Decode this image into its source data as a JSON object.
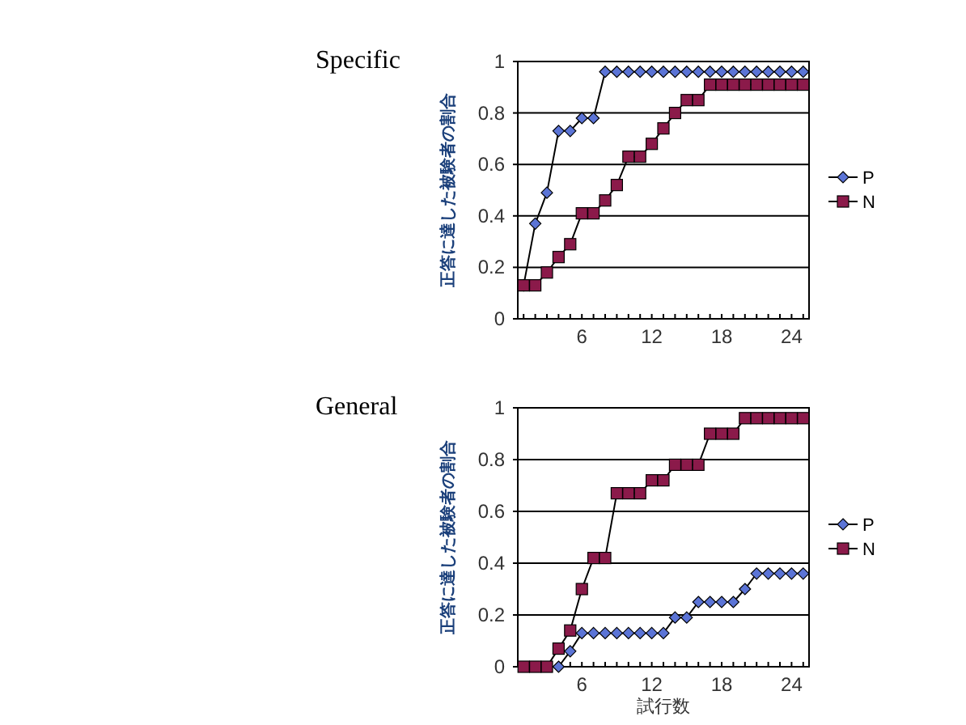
{
  "chart_data": [
    {
      "type": "line",
      "title": "Specific",
      "ylabel": "正答に達した被験者の割合",
      "x": [
        1,
        2,
        3,
        4,
        5,
        6,
        7,
        8,
        9,
        10,
        11,
        12,
        13,
        14,
        15,
        16,
        17,
        18,
        19,
        20,
        21,
        22,
        23,
        24,
        25
      ],
      "xlim": [
        0.5,
        25.5
      ],
      "ylim": [
        0,
        1
      ],
      "yticks": [
        0,
        0.2,
        0.4,
        0.6,
        0.8,
        1
      ],
      "xticks": [
        {
          "value": 1,
          "label": null
        },
        {
          "value": 2,
          "label": null
        },
        {
          "value": 3,
          "label": null
        },
        {
          "value": 4,
          "label": null
        },
        {
          "value": 5,
          "label": null
        },
        6,
        {
          "value": 7,
          "label": null
        },
        {
          "value": 8,
          "label": null
        },
        {
          "value": 9,
          "label": null
        },
        {
          "value": 10,
          "label": null
        },
        {
          "value": 11,
          "label": null
        },
        12,
        {
          "value": 13,
          "label": null
        },
        {
          "value": 14,
          "label": null
        },
        {
          "value": 15,
          "label": null
        },
        {
          "value": 16,
          "label": null
        },
        {
          "value": 17,
          "label": null
        },
        18,
        {
          "value": 19,
          "label": null
        },
        {
          "value": 20,
          "label": null
        },
        {
          "value": 21,
          "label": null
        },
        {
          "value": 22,
          "label": null
        },
        {
          "value": 23,
          "label": null
        },
        24,
        {
          "value": 25,
          "label": null
        }
      ],
      "grid": "y",
      "legend": "right",
      "series": [
        {
          "name": "P",
          "color": "#5b74d6",
          "marker": "diamond",
          "values": [
            0.13,
            0.37,
            0.49,
            0.73,
            0.73,
            0.78,
            0.78,
            0.96,
            0.96,
            0.96,
            0.96,
            0.96,
            0.96,
            0.96,
            0.96,
            0.96,
            0.96,
            0.96,
            0.96,
            0.96,
            0.96,
            0.96,
            0.96,
            0.96,
            0.96
          ]
        },
        {
          "name": "N",
          "color": "#8b1a4a",
          "marker": "square",
          "values": [
            0.13,
            0.13,
            0.18,
            0.24,
            0.29,
            0.41,
            0.41,
            0.46,
            0.52,
            0.63,
            0.63,
            0.68,
            0.74,
            0.8,
            0.85,
            0.85,
            0.91,
            0.91,
            0.91,
            0.91,
            0.91,
            0.91,
            0.91,
            0.91,
            0.91
          ]
        }
      ]
    },
    {
      "type": "line",
      "title": "General",
      "ylabel": "正答に達した被験者の割合",
      "xlabel": "試行数",
      "x": [
        1,
        2,
        3,
        4,
        5,
        6,
        7,
        8,
        9,
        10,
        11,
        12,
        13,
        14,
        15,
        16,
        17,
        18,
        19,
        20,
        21,
        22,
        23,
        24,
        25
      ],
      "xlim": [
        0.5,
        25.5
      ],
      "ylim": [
        0,
        1
      ],
      "yticks": [
        0,
        0.2,
        0.4,
        0.6,
        0.8,
        1
      ],
      "xticks": [
        {
          "value": 1,
          "label": null
        },
        {
          "value": 2,
          "label": null
        },
        {
          "value": 3,
          "label": null
        },
        {
          "value": 4,
          "label": null
        },
        {
          "value": 5,
          "label": null
        },
        6,
        {
          "value": 7,
          "label": null
        },
        {
          "value": 8,
          "label": null
        },
        {
          "value": 9,
          "label": null
        },
        {
          "value": 10,
          "label": null
        },
        {
          "value": 11,
          "label": null
        },
        12,
        {
          "value": 13,
          "label": null
        },
        {
          "value": 14,
          "label": null
        },
        {
          "value": 15,
          "label": null
        },
        {
          "value": 16,
          "label": null
        },
        {
          "value": 17,
          "label": null
        },
        18,
        {
          "value": 19,
          "label": null
        },
        {
          "value": 20,
          "label": null
        },
        {
          "value": 21,
          "label": null
        },
        {
          "value": 22,
          "label": null
        },
        {
          "value": 23,
          "label": null
        },
        24,
        {
          "value": 25,
          "label": null
        }
      ],
      "grid": "y",
      "legend": "right",
      "series": [
        {
          "name": "P",
          "color": "#5b74d6",
          "marker": "diamond",
          "values": [
            null,
            null,
            null,
            0,
            0.06,
            0.13,
            0.13,
            0.13,
            0.13,
            0.13,
            0.13,
            0.13,
            0.13,
            0.19,
            0.19,
            0.25,
            0.25,
            0.25,
            0.25,
            0.3,
            0.36,
            0.36,
            0.36,
            0.36,
            0.36
          ]
        },
        {
          "name": "N",
          "color": "#8b1a4a",
          "marker": "square",
          "values": [
            0,
            0,
            0,
            0.07,
            0.14,
            0.3,
            0.42,
            0.42,
            0.67,
            0.67,
            0.67,
            0.72,
            0.72,
            0.78,
            0.78,
            0.78,
            0.9,
            0.9,
            0.9,
            0.96,
            0.96,
            0.96,
            0.96,
            0.96,
            0.96
          ]
        }
      ]
    }
  ]
}
